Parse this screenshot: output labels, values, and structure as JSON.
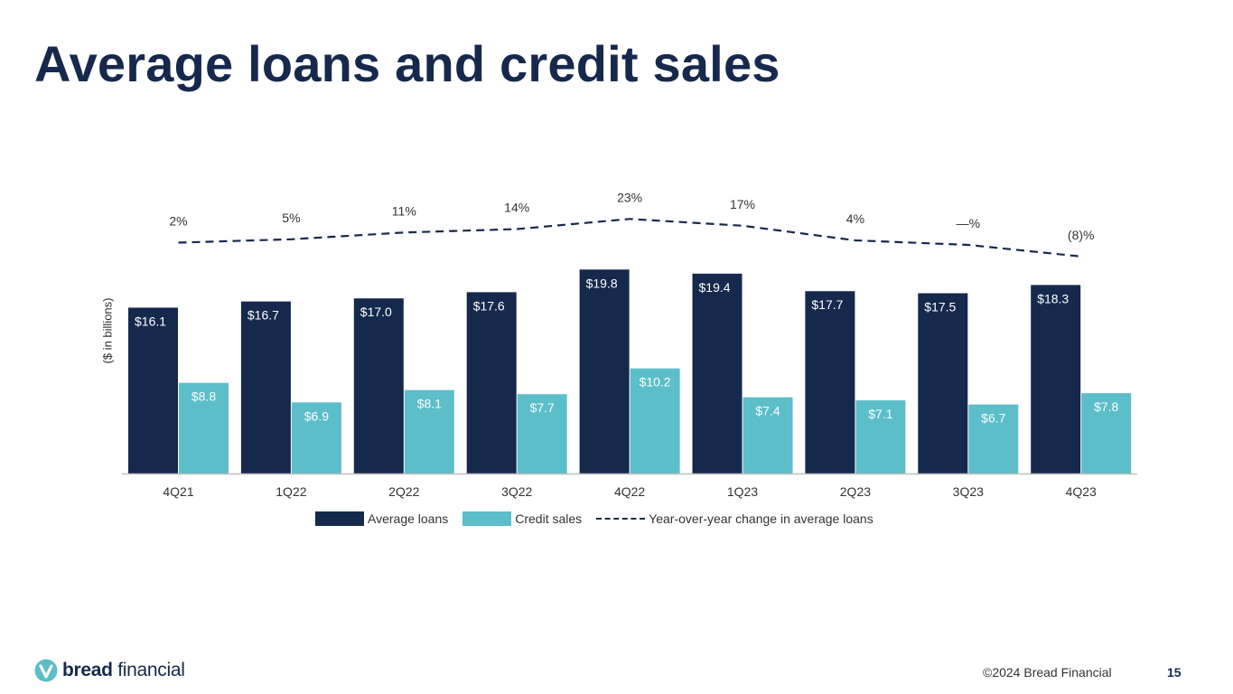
{
  "title": "Average loans and credit sales",
  "colors": {
    "average_loans": "#15294d",
    "credit_sales": "#5bbec8",
    "yoy_line": "#16294d",
    "title": "#16294d"
  },
  "chart_data": {
    "type": "bar",
    "categories": [
      "4Q21",
      "1Q22",
      "2Q22",
      "3Q22",
      "4Q22",
      "1Q23",
      "2Q23",
      "3Q23",
      "4Q23"
    ],
    "ylabel": "($ in billions)",
    "ylim": [
      0,
      20
    ],
    "grid": false,
    "legend_position": "bottom",
    "series": [
      {
        "name": "Average loans",
        "type": "bar",
        "values": [
          16.1,
          16.7,
          17.0,
          17.6,
          19.8,
          19.4,
          17.7,
          17.5,
          18.3
        ],
        "labels": [
          "$16.1",
          "$16.7",
          "$17.0",
          "$17.6",
          "$19.8",
          "$19.4",
          "$17.7",
          "$17.5",
          "$18.3"
        ]
      },
      {
        "name": "Credit sales",
        "type": "bar",
        "values": [
          8.8,
          6.9,
          8.1,
          7.7,
          10.2,
          7.4,
          7.1,
          6.7,
          7.8
        ],
        "labels": [
          "$8.8",
          "$6.9",
          "$8.1",
          "$7.7",
          "$10.2",
          "$7.4",
          "$7.1",
          "$6.7",
          "$7.8"
        ]
      },
      {
        "name": "Year-over-year change in average loans",
        "type": "line",
        "style": "dashed",
        "values": [
          2,
          5,
          11,
          14,
          23,
          17,
          4,
          0,
          -8
        ],
        "labels": [
          "2%",
          "5%",
          "11%",
          "14%",
          "23%",
          "17%",
          "4%",
          "—%",
          "(8)%"
        ]
      }
    ]
  },
  "legend": {
    "average_loans": "Average loans",
    "credit_sales": "Credit sales",
    "yoy": "Year-over-year change in average loans"
  },
  "footer": {
    "logo_bold": "bread",
    "logo_light": "financial",
    "copyright": "©2024 Bread Financial",
    "page_number": "15"
  }
}
